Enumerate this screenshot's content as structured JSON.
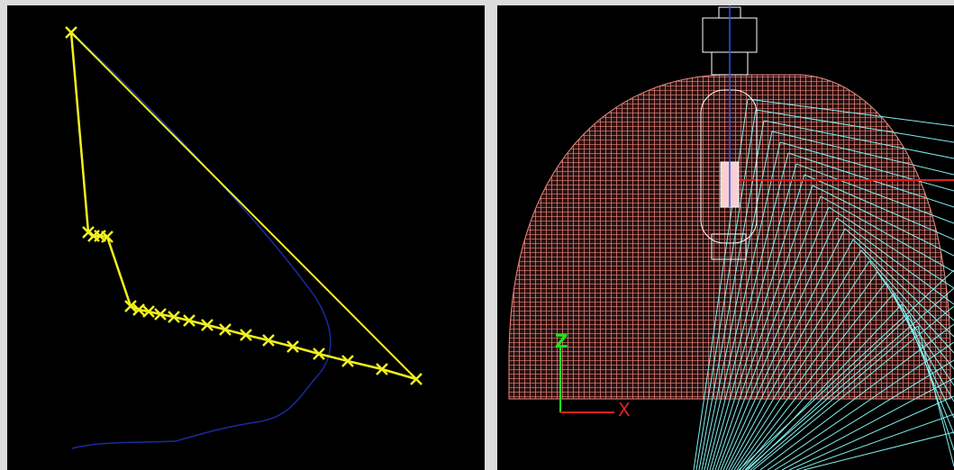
{
  "axes": {
    "z_label": "Z",
    "x_label": "X"
  }
}
